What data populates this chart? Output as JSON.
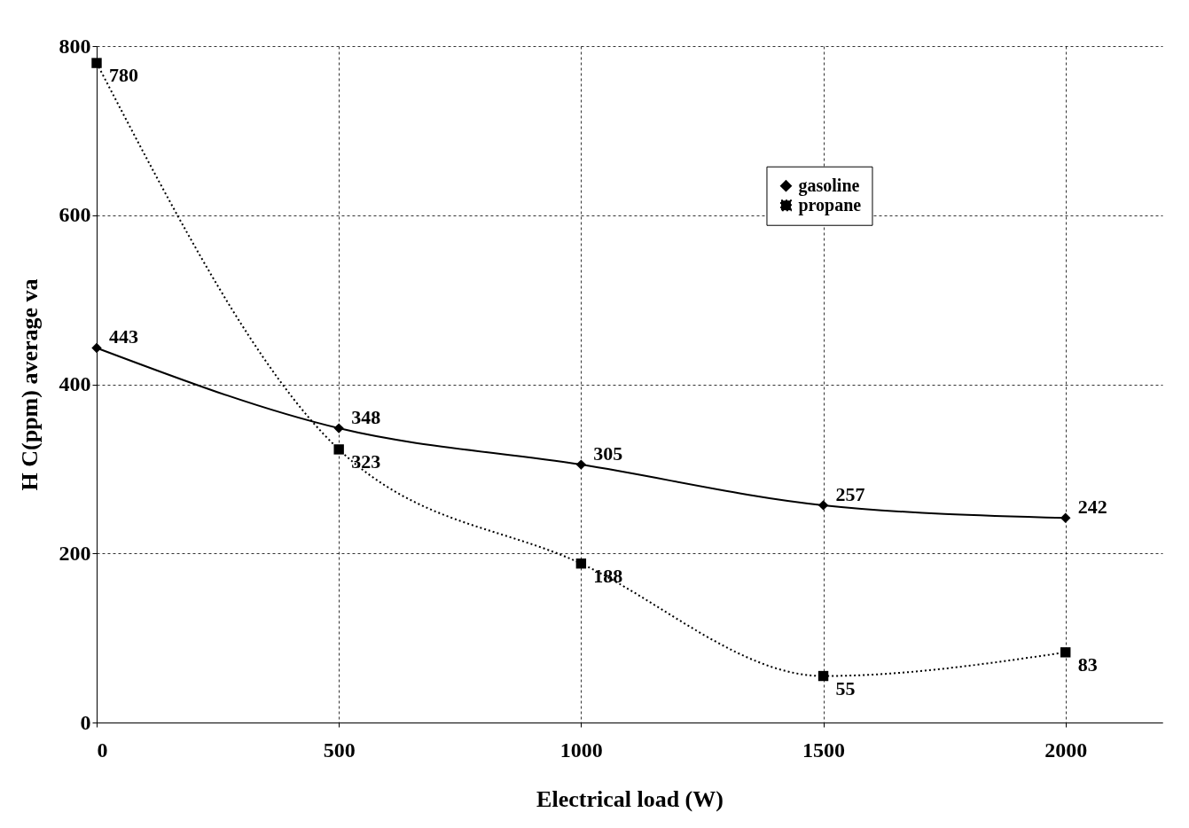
{
  "chart_data": {
    "type": "line",
    "xlabel": "Electrical load (W)",
    "ylabel": "H C(ppm) average va",
    "x": [
      0,
      500,
      1000,
      1500,
      2000
    ],
    "series": [
      {
        "name": "gasoline",
        "color": "#000000",
        "values": [
          443,
          348,
          305,
          257,
          242
        ],
        "marker": "diamond",
        "line_style": "solid"
      },
      {
        "name": "propane",
        "color": "#000000",
        "values": [
          780,
          323,
          188,
          55,
          83
        ],
        "marker": "square",
        "line_style": "dotted"
      }
    ],
    "xlim": [
      0,
      2200
    ],
    "xticks": [
      0,
      500,
      1000,
      1500,
      2000
    ],
    "ylim": [
      0,
      800
    ],
    "yticks": [
      0,
      200,
      400,
      600,
      800
    ],
    "grid": true,
    "legend": "right",
    "data_labels": true
  }
}
